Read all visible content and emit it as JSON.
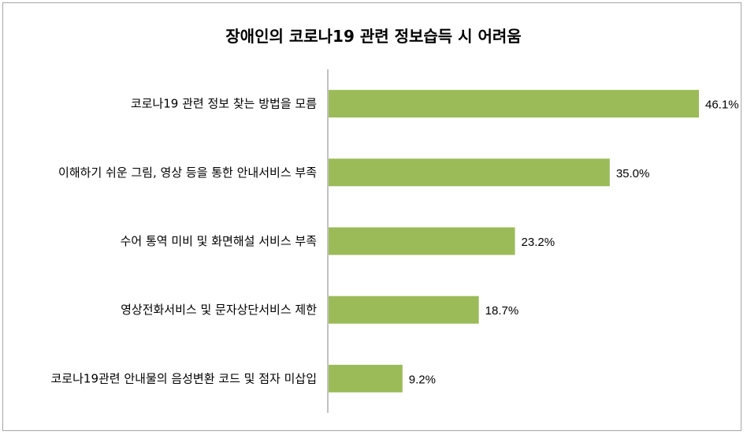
{
  "chart_data": {
    "type": "bar",
    "orientation": "horizontal",
    "title": "장애인의 코로나19 관련 정보습득 시 어려움",
    "categories": [
      "코로나19 관련 정보 찾는 방법을 모름",
      "이해하기 쉬운 그림, 영상 등을 통한 안내서비스 부족",
      "수어 통역 미비 및 화면해설 서비스 부족",
      "영상전화서비스 및 문자상단서비스 제한",
      "코로나19관련 안내물의 음성변환 코드 및 점자 미삽입"
    ],
    "values": [
      46.1,
      35.0,
      23.2,
      18.7,
      9.2
    ],
    "value_labels": [
      "46.1%",
      "35.0%",
      "23.2%",
      "18.7%",
      "9.2%"
    ],
    "bar_color": "#9bbb59",
    "xlim": [
      0,
      50
    ],
    "grid": false,
    "legend": "none"
  }
}
